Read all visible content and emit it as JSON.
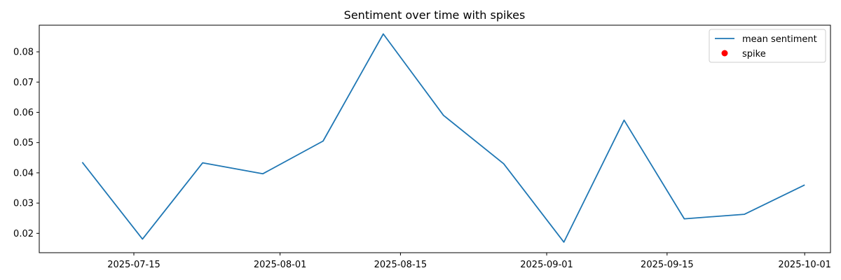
{
  "chart_data": {
    "type": "line",
    "title": "Sentiment over time with spikes",
    "xlabel": "",
    "ylabel": "",
    "x_is_date": true,
    "xlim": [
      "2025-07-04",
      "2025-10-04"
    ],
    "ylim": [
      0.0136,
      0.0888
    ],
    "x_ticks": [
      "2025-07-15",
      "2025-08-01",
      "2025-08-15",
      "2025-09-01",
      "2025-09-15",
      "2025-10-01"
    ],
    "y_ticks": [
      0.02,
      0.03,
      0.04,
      0.05,
      0.06,
      0.07,
      0.08
    ],
    "y_tick_labels": [
      "0.02",
      "0.03",
      "0.04",
      "0.05",
      "0.06",
      "0.07",
      "0.08"
    ],
    "grid": false,
    "legend": {
      "position": "top-right",
      "entries": [
        {
          "label": "mean sentiment",
          "kind": "line",
          "color": "#1f77b4"
        },
        {
          "label": "spike",
          "kind": "marker",
          "color": "#ff0000"
        }
      ]
    },
    "series": [
      {
        "name": "mean sentiment",
        "color": "#1f77b4",
        "x": [
          "2025-07-09",
          "2025-07-16",
          "2025-07-23",
          "2025-07-30",
          "2025-08-06",
          "2025-08-13",
          "2025-08-20",
          "2025-08-27",
          "2025-09-03",
          "2025-09-10",
          "2025-09-17",
          "2025-09-24",
          "2025-10-01"
        ],
        "y": [
          0.0435,
          0.0181,
          0.0433,
          0.0397,
          0.0505,
          0.0859,
          0.059,
          0.043,
          0.0171,
          0.0574,
          0.0248,
          0.0263,
          0.036
        ]
      },
      {
        "name": "spike",
        "type": "scatter",
        "color": "#ff0000",
        "x": [],
        "y": []
      }
    ]
  }
}
